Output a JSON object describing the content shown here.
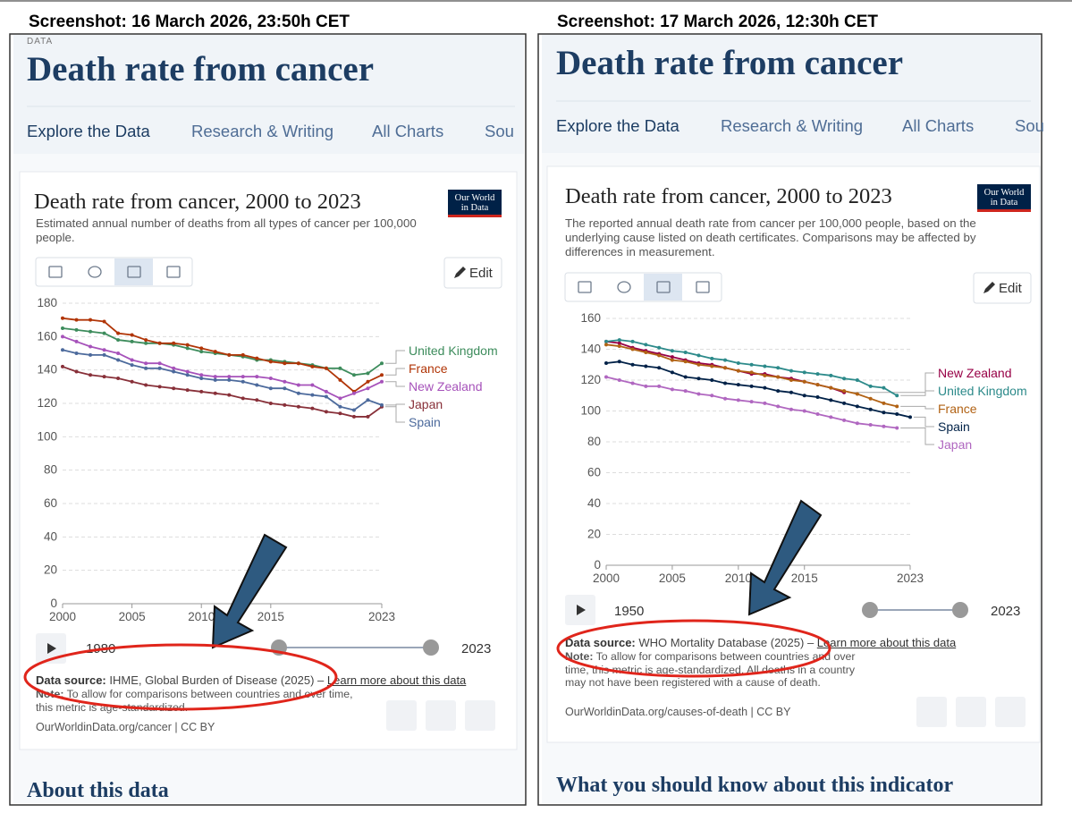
{
  "screenshots": [
    {
      "caption": "Screenshot: 16 March 2026, 23:50h CET",
      "section": "DATA",
      "page_title": "Death rate from cancer",
      "tabs": [
        "Explore the Data",
        "Research & Writing",
        "All Charts",
        "Sou"
      ],
      "logo": [
        "Our World",
        "in Data"
      ],
      "edit": "Edit",
      "timeline": {
        "start": "1980",
        "end": "2023"
      },
      "data_source_label": "Data source:",
      "data_source": "IHME, Global Burden of Disease (2025) –",
      "learn_more": "Learn more about this data",
      "note_label": "Note:",
      "note": "To allow for comparisons between countries and over time, this metric is age-standardized.",
      "footer": "OurWorldinData.org/cancer | CC BY",
      "next_heading": "About this data"
    },
    {
      "caption": "Screenshot: 17 March 2026, 12:30h CET",
      "page_title": "Death rate from cancer",
      "tabs": [
        "Explore the Data",
        "Research & Writing",
        "All Charts",
        "Sou"
      ],
      "logo": [
        "Our World",
        "in Data"
      ],
      "edit": "Edit",
      "timeline": {
        "start": "1950",
        "end": "2023"
      },
      "data_source_label": "Data source:",
      "data_source": "WHO Mortality Database (2025) –",
      "learn_more": "Learn more about this data",
      "note_label": "Note:",
      "note": "To allow for comparisons between countries and over time, this metric is age-standardized. All deaths in a country may not have been registered with a cause of death.",
      "footer": "OurWorldinData.org/causes-of-death | CC BY",
      "next_heading": "What you should know about this indicator"
    }
  ],
  "chart_data": [
    {
      "type": "line",
      "title": "Death rate from cancer, 2000 to 2023",
      "subtitle": "Estimated annual number of deaths from all types of cancer per 100,000 people.",
      "x": [
        2000,
        2001,
        2002,
        2003,
        2004,
        2005,
        2006,
        2007,
        2008,
        2009,
        2010,
        2011,
        2012,
        2013,
        2014,
        2015,
        2016,
        2017,
        2018,
        2019,
        2020,
        2021,
        2022,
        2023
      ],
      "xlim": [
        2000,
        2023
      ],
      "xticks": [
        2000,
        2005,
        2010,
        2015,
        2023
      ],
      "ylim": [
        0,
        180
      ],
      "yticks": [
        0,
        20,
        40,
        60,
        80,
        100,
        120,
        140,
        160,
        180
      ],
      "grid": true,
      "series": [
        {
          "name": "United Kingdom",
          "color": "#3d8c5c",
          "values": [
            165,
            164,
            163,
            162,
            158,
            157,
            156,
            156,
            155,
            153,
            151,
            150,
            149,
            148,
            146,
            146,
            145,
            144,
            143,
            141,
            141,
            137,
            138,
            144
          ]
        },
        {
          "name": "France",
          "color": "#b13507",
          "values": [
            171,
            170,
            170,
            169,
            162,
            161,
            158,
            156,
            156,
            155,
            153,
            151,
            149,
            149,
            147,
            145,
            144,
            144,
            142,
            141,
            134,
            127,
            133,
            137
          ]
        },
        {
          "name": "New Zealand",
          "color": "#a652ba",
          "values": [
            160,
            157,
            154,
            152,
            150,
            146,
            144,
            144,
            141,
            139,
            137,
            136,
            136,
            136,
            136,
            135,
            133,
            131,
            131,
            127,
            123,
            126,
            129,
            133
          ]
        },
        {
          "name": "Japan",
          "color": "#883039",
          "values": [
            142,
            139,
            137,
            136,
            135,
            133,
            131,
            130,
            129,
            128,
            127,
            126,
            125,
            123,
            122,
            120,
            119,
            118,
            117,
            115,
            114,
            112,
            112,
            118
          ]
        },
        {
          "name": "Spain",
          "color": "#4c6a9c",
          "values": [
            152,
            150,
            149,
            149,
            146,
            143,
            141,
            141,
            139,
            137,
            135,
            134,
            134,
            133,
            131,
            129,
            129,
            126,
            125,
            124,
            118,
            116,
            122,
            119
          ]
        }
      ]
    },
    {
      "type": "line",
      "title": "Death rate from cancer, 2000 to 2023",
      "subtitle": "The reported annual death rate from cancer per 100,000 people, based on the underlying cause listed on death certificates. Comparisons may be affected by differences in measurement.",
      "x": [
        2000,
        2001,
        2002,
        2003,
        2004,
        2005,
        2006,
        2007,
        2008,
        2009,
        2010,
        2011,
        2012,
        2013,
        2014,
        2015,
        2016,
        2017,
        2018,
        2019,
        2020,
        2021,
        2022,
        2023
      ],
      "xlim": [
        2000,
        2023
      ],
      "xticks": [
        2000,
        2005,
        2010,
        2015,
        2023
      ],
      "ylim": [
        0,
        160
      ],
      "yticks": [
        0,
        20,
        40,
        60,
        80,
        100,
        120,
        140,
        160
      ],
      "grid": true,
      "series": [
        {
          "name": "New Zealand",
          "color": "#970046",
          "values": [
            145,
            144,
            141,
            139,
            137,
            135,
            133,
            131,
            130,
            128,
            126,
            124,
            124,
            122,
            121,
            119,
            117,
            115,
            112,
            null,
            null,
            null,
            null,
            null
          ]
        },
        {
          "name": "United Kingdom",
          "color": "#2c8a8a",
          "values": [
            145,
            146,
            145,
            143,
            141,
            139,
            138,
            136,
            134,
            133,
            131,
            130,
            129,
            128,
            126,
            125,
            124,
            123,
            121,
            120,
            116,
            115,
            110,
            null
          ]
        },
        {
          "name": "France",
          "color": "#b16214",
          "values": [
            143,
            142,
            140,
            138,
            136,
            133,
            132,
            130,
            129,
            128,
            126,
            125,
            123,
            122,
            120,
            119,
            117,
            115,
            113,
            111,
            108,
            105,
            103,
            null
          ]
        },
        {
          "name": "Spain",
          "color": "#002147",
          "values": [
            131,
            132,
            130,
            129,
            128,
            125,
            122,
            121,
            120,
            118,
            117,
            116,
            115,
            113,
            112,
            110,
            109,
            107,
            105,
            103,
            101,
            99,
            98,
            96
          ]
        },
        {
          "name": "Japan",
          "color": "#b067c0",
          "values": [
            122,
            120,
            118,
            116,
            116,
            114,
            113,
            111,
            110,
            108,
            107,
            106,
            105,
            103,
            101,
            100,
            98,
            96,
            94,
            92,
            91,
            90,
            89,
            null
          ]
        }
      ]
    }
  ]
}
